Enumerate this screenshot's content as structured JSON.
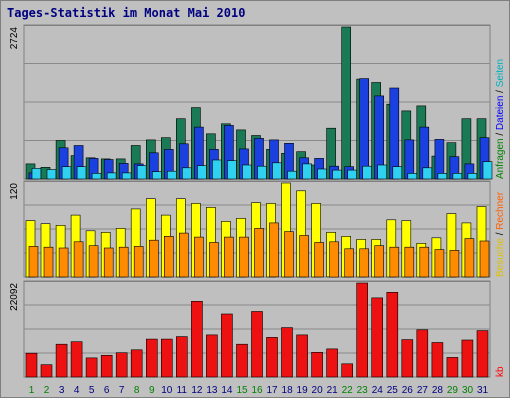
{
  "chart_data": {
    "type": "bar",
    "title": "Tages-Statistik im Monat Mai 2010",
    "categories": [
      "1",
      "2",
      "3",
      "4",
      "5",
      "6",
      "7",
      "8",
      "9",
      "10",
      "11",
      "12",
      "13",
      "14",
      "15",
      "16",
      "17",
      "18",
      "19",
      "20",
      "21",
      "22",
      "23",
      "24",
      "25",
      "26",
      "27",
      "28",
      "29",
      "30",
      "31"
    ],
    "weekend_days": [
      "1",
      "2",
      "8",
      "9",
      "15",
      "16",
      "22",
      "23",
      "29",
      "30"
    ],
    "colors": {
      "frame_bg": "#c0c0c0",
      "plot_bg": "#bfbfbf",
      "title": "#000080",
      "weekday_label": "#000080",
      "weekend_label": "#008000",
      "anfragen": "#1a7a55",
      "dateien": "#1a40e0",
      "seiten": "#30d0f0",
      "besuche": "#ffff00",
      "rechner": "#ff8c00",
      "kb": "#ee1111",
      "label_anfragen": "#008000",
      "label_dateien": "#0000ff",
      "label_seiten": "#00b0c0",
      "label_besuche": "#e0c000",
      "label_rechner": "#ff6000",
      "label_kb": "#ff0000"
    },
    "panels": [
      {
        "ymax_label": "2724",
        "ymax": 2724,
        "series": [
          {
            "name": "Anfragen",
            "values": [
              270,
              210,
              690,
              420,
              380,
              360,
              360,
              600,
              700,
              740,
              1080,
              1280,
              810,
              990,
              880,
              780,
              530,
              460,
              490,
              250,
              910,
              2724,
              1790,
              1730,
              1340,
              1220,
              1310,
              410,
              650,
              1080,
              1080
            ]
          },
          {
            "name": "Dateien",
            "values": [
              110,
              0,
              560,
              600,
              370,
              350,
              280,
              270,
              470,
              530,
              630,
              930,
              530,
              960,
              540,
              730,
              700,
              640,
              380,
              370,
              230,
              220,
              1800,
              1490,
              1630,
              700,
              930,
              710,
              400,
              270,
              740
            ]
          },
          {
            "name": "Seiten",
            "values": [
              190,
              170,
              220,
              220,
              100,
              110,
              110,
              240,
              130,
              140,
              200,
              240,
              340,
              330,
              250,
              230,
              290,
              140,
              270,
              180,
              160,
              160,
              230,
              250,
              220,
              100,
              200,
              100,
              100,
              100,
              310
            ]
          }
        ],
        "right_labels": [
          {
            "text": "Anfragen",
            "color_key": "label_anfragen"
          },
          {
            "text": "Dateien",
            "color_key": "label_dateien"
          },
          {
            "text": "Seiten",
            "color_key": "label_seiten"
          }
        ]
      },
      {
        "ymax_label": "120",
        "ymax": 120,
        "series": [
          {
            "name": "Besuche",
            "values": [
              72,
              68,
              66,
              79,
              59,
              57,
              62,
              87,
              100,
              79,
              100,
              94,
              89,
              71,
              75,
              95,
              94,
              120,
              110,
              94,
              57,
              52,
              48,
              48,
              73,
              72,
              43,
              50,
              81,
              69,
              90
            ]
          },
          {
            "name": "Rechner",
            "values": [
              39,
              38,
              37,
              45,
              40,
              37,
              38,
              39,
              47,
              52,
              56,
              51,
              44,
              51,
              51,
              62,
              69,
              58,
              53,
              44,
              45,
              36,
              36,
              40,
              38,
              38,
              38,
              35,
              34,
              49,
              46
            ]
          }
        ],
        "right_labels": [
          {
            "text": "Besuche",
            "color_key": "label_besuche"
          },
          {
            "text": "Rechner",
            "color_key": "label_rechner"
          }
        ]
      },
      {
        "ymax_label": "22092",
        "ymax": 22092,
        "series": [
          {
            "name": "kb",
            "values": [
              5600,
              2900,
              7700,
              8300,
              4500,
              5100,
              5700,
              6400,
              8900,
              8900,
              9500,
              17800,
              9900,
              14800,
              7700,
              15400,
              9300,
              11600,
              9900,
              5800,
              6600,
              3100,
              22092,
              18600,
              19900,
              8800,
              11100,
              8100,
              4600,
              8700,
              10900
            ]
          }
        ],
        "right_labels": [
          {
            "text": "kb",
            "color_key": "label_kb"
          }
        ]
      }
    ]
  }
}
